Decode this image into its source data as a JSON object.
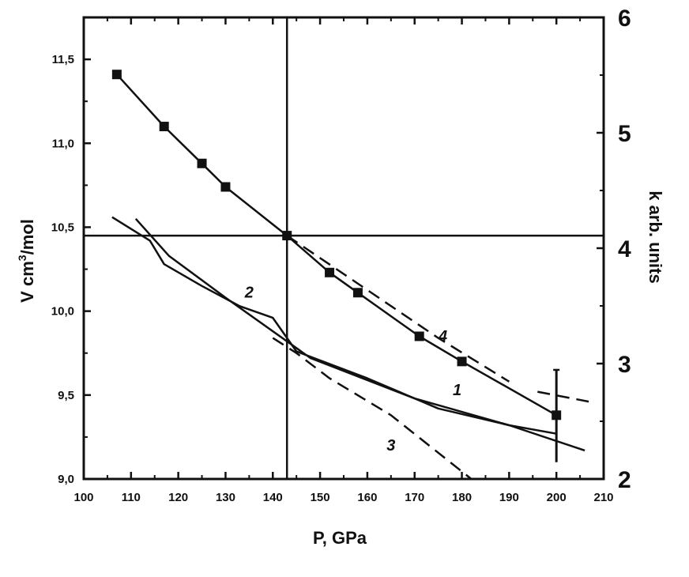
{
  "chart_data": {
    "type": "line",
    "xlabel": "P, GPa",
    "ylabel_left": "V cm",
    "ylabel_left_sup": "3",
    "ylabel_left_tail": "/mol",
    "ylabel_right": "k arb. units",
    "xlim": [
      100,
      210
    ],
    "ylim_left": [
      9.0,
      11.75
    ],
    "ylim_right": [
      2,
      6
    ],
    "x_ticks": [
      100,
      110,
      120,
      130,
      140,
      150,
      160,
      170,
      180,
      190,
      200,
      210
    ],
    "x_tick_labels": [
      "100",
      "110",
      "120",
      "130",
      "140",
      "150",
      "160",
      "170",
      "180",
      "190",
      "200",
      "210"
    ],
    "y_left_ticks": [
      9.0,
      9.5,
      10.0,
      10.5,
      11.0,
      11.5
    ],
    "y_left_tick_labels": [
      "9,0",
      "9,5",
      "10,0",
      "10,5",
      "11,0",
      "11,5"
    ],
    "y_right_ticks": [
      2,
      3,
      4,
      5,
      6
    ],
    "y_right_tick_labels": [
      "2",
      "3",
      "4",
      "5",
      "6"
    ],
    "grid": false,
    "reference_lines": {
      "vertical_x": 143,
      "horizontal_y": 10.45
    },
    "series": [
      {
        "axis": "left",
        "style": "solid",
        "markers": "square",
        "x": [
          107,
          117,
          125,
          130,
          143,
          152,
          158,
          171,
          180,
          200
        ],
        "y": [
          11.41,
          11.1,
          10.88,
          10.74,
          10.45,
          10.23,
          10.11,
          9.85,
          9.7,
          9.38
        ]
      },
      {
        "axis": "left",
        "style": "dashed",
        "x": [
          143,
          175,
          190
        ],
        "y": [
          10.45,
          9.84,
          9.58
        ]
      },
      {
        "axis": "left",
        "style": "dashed",
        "x": [
          196,
          207
        ],
        "y": [
          9.52,
          9.46
        ]
      },
      {
        "axis": "left",
        "style": "solid",
        "x": [
          111,
          118,
          130,
          148,
          170,
          190,
          206
        ],
        "y": [
          10.55,
          10.33,
          10.08,
          9.72,
          9.48,
          9.32,
          9.17
        ]
      },
      {
        "axis": "left",
        "style": "solid",
        "x": [
          106,
          114,
          117,
          125,
          133,
          140,
          145,
          160,
          175,
          190,
          200
        ],
        "y": [
          10.56,
          10.42,
          10.28,
          10.15,
          10.03,
          9.96,
          9.76,
          9.6,
          9.42,
          9.32,
          9.27
        ]
      },
      {
        "axis": "left",
        "style": "dashed",
        "x": [
          140,
          145,
          152,
          165,
          182
        ],
        "y": [
          9.84,
          9.75,
          9.6,
          9.38,
          9.0
        ]
      }
    ],
    "markers": [
      {
        "x": 107,
        "y": 11.41
      },
      {
        "x": 117,
        "y": 11.1
      },
      {
        "x": 125,
        "y": 10.88
      },
      {
        "x": 130,
        "y": 10.74
      },
      {
        "x": 143,
        "y": 10.45
      },
      {
        "x": 152,
        "y": 10.23
      },
      {
        "x": 158,
        "y": 10.11
      },
      {
        "x": 171,
        "y": 9.85
      },
      {
        "x": 180,
        "y": 9.7
      },
      {
        "x": 200,
        "y": 9.38
      }
    ],
    "error_bar": {
      "x": 200,
      "y_low": 9.1,
      "y_high": 9.65
    },
    "annotations": [
      {
        "text": "2",
        "x": 135,
        "y": 10.08
      },
      {
        "text": "4",
        "x": 176,
        "y": 9.82
      },
      {
        "text": "1",
        "x": 179,
        "y": 9.5
      },
      {
        "text": "3",
        "x": 165,
        "y": 9.17
      }
    ]
  }
}
